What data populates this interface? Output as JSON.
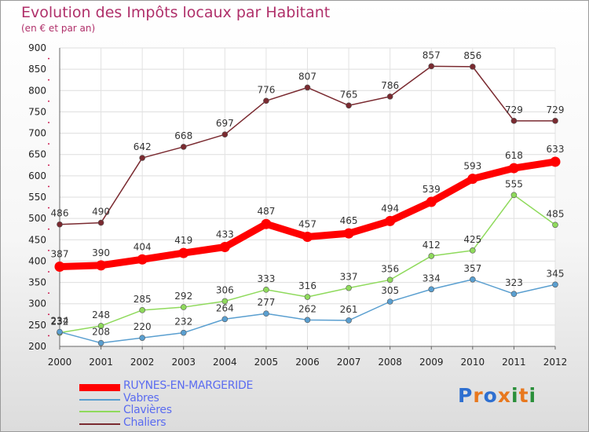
{
  "title": "Evolution des Impôts locaux par Habitant",
  "subtitle": "(en € et par an)",
  "logo": {
    "letters": [
      "P",
      "r",
      "o",
      "x",
      "i",
      "t",
      "i"
    ],
    "colors": [
      "#2e6fd0",
      "#e8781e",
      "#2e6fd0",
      "#e8781e",
      "#2a8f3a",
      "#e8781e",
      "#2a8f3a"
    ]
  },
  "chart_data": {
    "type": "line",
    "title": "Evolution des Impôts locaux par Habitant",
    "subtitle": "(en € et par an)",
    "xlabel": "",
    "ylabel": "",
    "x": [
      "2000",
      "2001",
      "2002",
      "2003",
      "2004",
      "2005",
      "2006",
      "2007",
      "2008",
      "2009",
      "2010",
      "2011",
      "2012"
    ],
    "ylim": [
      200,
      900
    ],
    "yticks": [
      "200",
      "250",
      "300",
      "350",
      "400",
      "450",
      "500",
      "550",
      "600",
      "650",
      "700",
      "750",
      "800",
      "850",
      "900"
    ],
    "grid": true,
    "legend_position": "bottom-left",
    "series": [
      {
        "name": "RUYNES-EN-MARGERIDE",
        "color": "#ff0000",
        "values": [
          387,
          390,
          404,
          419,
          433,
          487,
          457,
          465,
          494,
          539,
          593,
          618,
          633
        ],
        "labels": [
          "387",
          "390",
          "404",
          "419",
          "433",
          "487",
          "457",
          "465",
          "494",
          "539",
          "593",
          "618",
          "633"
        ]
      },
      {
        "name": "Vabres",
        "color": "#5a9fd0",
        "values": [
          234,
          208,
          220,
          232,
          264,
          277,
          262,
          261,
          305,
          334,
          357,
          323,
          345
        ],
        "labels": [
          "234",
          "208",
          "220",
          "232",
          "264",
          "277",
          "262",
          "261",
          "305",
          "334",
          "357",
          "323",
          "345"
        ]
      },
      {
        "name": "Clavières",
        "color": "#8fda5c",
        "values": [
          232,
          248,
          285,
          292,
          306,
          333,
          316,
          337,
          356,
          412,
          425,
          555,
          485
        ],
        "labels": [
          "232",
          "248",
          "285",
          "292",
          "306",
          "333",
          "316",
          "337",
          "356",
          "412",
          "425",
          "555",
          "485"
        ]
      },
      {
        "name": "Chaliers",
        "color": "#7a2a30",
        "values": [
          486,
          490,
          642,
          668,
          697,
          776,
          807,
          765,
          786,
          857,
          856,
          729,
          729
        ],
        "labels": [
          "486",
          "490",
          "642",
          "668",
          "697",
          "776",
          "807",
          "765",
          "786",
          "857",
          "856",
          "729",
          "729"
        ]
      }
    ]
  }
}
